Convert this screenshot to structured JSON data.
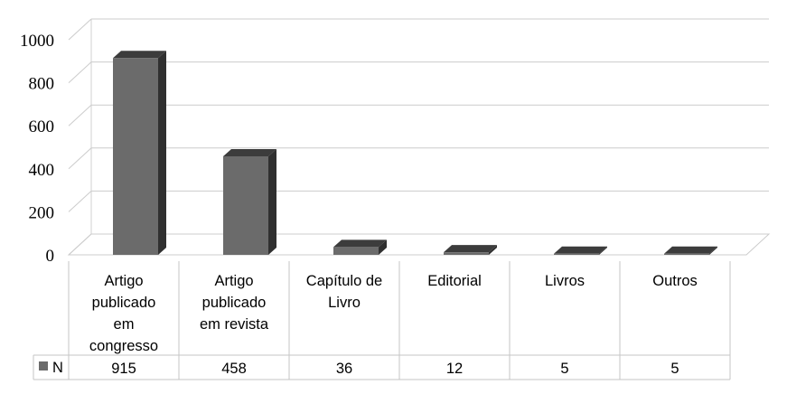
{
  "chart_data": {
    "type": "bar",
    "categories": [
      [
        "Artigo",
        "publicado",
        "em",
        "congresso"
      ],
      [
        "Artigo",
        "publicado",
        "em revista"
      ],
      [
        "Capítulo de",
        "Livro"
      ],
      [
        "Editorial"
      ],
      [
        "Livros"
      ],
      [
        "Outros"
      ]
    ],
    "series": [
      {
        "name": "N",
        "values": [
          915,
          458,
          36,
          12,
          5,
          5
        ],
        "color": "#6b6b6b"
      }
    ],
    "value_labels": [
      "915",
      "458",
      "36",
      "12",
      "5",
      "5"
    ],
    "y_ticks": [
      "0",
      "200",
      "400",
      "600",
      "800",
      "1000"
    ],
    "ylim": [
      0,
      1000
    ],
    "grid": true,
    "three_d": true,
    "data_table": true,
    "legend_placement": "data-table-left"
  }
}
